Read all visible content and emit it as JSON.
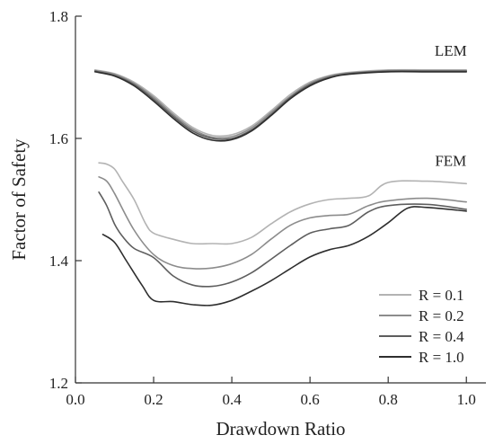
{
  "chart_data": {
    "type": "line",
    "title": "",
    "xlabel": "Drawdown Ratio",
    "ylabel": "Factor of Safety",
    "xlim": [
      0.0,
      1.05
    ],
    "ylim": [
      1.2,
      1.8
    ],
    "xticks": [
      0.0,
      0.2,
      0.4,
      0.6,
      0.8,
      1.0
    ],
    "xtick_labels": [
      "0.0",
      "0.2",
      "0.4",
      "0.6",
      "0.8",
      "1.0"
    ],
    "yticks": [
      1.2,
      1.4,
      1.6,
      1.8
    ],
    "ytick_labels": [
      "1.2",
      "1.4",
      "1.6",
      "1.8"
    ],
    "grid": false,
    "legend_position": "bottom-right",
    "annotations": [
      {
        "text": "LEM",
        "x": 0.96,
        "y": 1.735
      },
      {
        "text": "FEM",
        "x": 0.96,
        "y": 1.555
      }
    ],
    "series": [
      {
        "name": "R = 0.1",
        "group": "LEM",
        "color": "#b3b3b3",
        "x": [
          0.05,
          0.1,
          0.15,
          0.2,
          0.25,
          0.3,
          0.35,
          0.4,
          0.45,
          0.5,
          0.55,
          0.6,
          0.65,
          0.7,
          0.8,
          0.9,
          1.0
        ],
        "y": [
          1.712,
          1.706,
          1.692,
          1.67,
          1.642,
          1.618,
          1.605,
          1.606,
          1.62,
          1.645,
          1.672,
          1.692,
          1.703,
          1.708,
          1.712,
          1.712,
          1.712
        ]
      },
      {
        "name": "R = 0.2",
        "group": "LEM",
        "color": "#8c8c8c",
        "x": [
          0.05,
          0.1,
          0.15,
          0.2,
          0.25,
          0.3,
          0.35,
          0.4,
          0.45,
          0.5,
          0.55,
          0.6,
          0.65,
          0.7,
          0.8,
          0.9,
          1.0
        ],
        "y": [
          1.711,
          1.705,
          1.69,
          1.667,
          1.639,
          1.615,
          1.602,
          1.603,
          1.617,
          1.642,
          1.669,
          1.69,
          1.702,
          1.707,
          1.711,
          1.711,
          1.711
        ]
      },
      {
        "name": "R = 0.4",
        "group": "LEM",
        "color": "#5e5e5e",
        "x": [
          0.05,
          0.1,
          0.15,
          0.2,
          0.25,
          0.3,
          0.35,
          0.4,
          0.45,
          0.5,
          0.55,
          0.6,
          0.65,
          0.7,
          0.8,
          0.9,
          1.0
        ],
        "y": [
          1.71,
          1.703,
          1.688,
          1.664,
          1.636,
          1.612,
          1.6,
          1.6,
          1.614,
          1.639,
          1.667,
          1.688,
          1.7,
          1.706,
          1.71,
          1.71,
          1.71
        ]
      },
      {
        "name": "R = 1.0",
        "group": "LEM",
        "color": "#2e2e2e",
        "x": [
          0.05,
          0.1,
          0.15,
          0.2,
          0.25,
          0.3,
          0.35,
          0.4,
          0.45,
          0.5,
          0.55,
          0.6,
          0.65,
          0.7,
          0.8,
          0.9,
          1.0
        ],
        "y": [
          1.709,
          1.702,
          1.686,
          1.661,
          1.633,
          1.609,
          1.597,
          1.598,
          1.612,
          1.637,
          1.665,
          1.686,
          1.699,
          1.705,
          1.709,
          1.709,
          1.709
        ]
      },
      {
        "name": "R = 0.1",
        "group": "FEM",
        "color": "#b3b3b3",
        "x": [
          0.06,
          0.08,
          0.1,
          0.12,
          0.15,
          0.18,
          0.2,
          0.25,
          0.3,
          0.35,
          0.4,
          0.45,
          0.5,
          0.55,
          0.6,
          0.65,
          0.7,
          0.75,
          0.8,
          0.9,
          1.0
        ],
        "y": [
          1.56,
          1.558,
          1.55,
          1.53,
          1.5,
          1.46,
          1.445,
          1.435,
          1.428,
          1.428,
          1.428,
          1.438,
          1.46,
          1.48,
          1.493,
          1.5,
          1.502,
          1.506,
          1.528,
          1.53,
          1.526
        ]
      },
      {
        "name": "R = 0.2",
        "group": "FEM",
        "color": "#8c8c8c",
        "x": [
          0.06,
          0.08,
          0.1,
          0.15,
          0.2,
          0.25,
          0.3,
          0.35,
          0.4,
          0.45,
          0.5,
          0.55,
          0.6,
          0.65,
          0.7,
          0.75,
          0.8,
          0.9,
          1.0
        ],
        "y": [
          1.537,
          1.53,
          1.51,
          1.45,
          1.41,
          1.392,
          1.387,
          1.388,
          1.395,
          1.41,
          1.435,
          1.458,
          1.47,
          1.474,
          1.476,
          1.49,
          1.498,
          1.502,
          1.496
        ]
      },
      {
        "name": "R = 0.4",
        "group": "FEM",
        "color": "#5e5e5e",
        "x": [
          0.06,
          0.08,
          0.1,
          0.12,
          0.15,
          0.2,
          0.25,
          0.3,
          0.35,
          0.4,
          0.45,
          0.5,
          0.55,
          0.6,
          0.65,
          0.7,
          0.75,
          0.8,
          0.9,
          1.0
        ],
        "y": [
          1.512,
          1.49,
          1.46,
          1.44,
          1.42,
          1.405,
          1.375,
          1.36,
          1.358,
          1.365,
          1.38,
          1.402,
          1.425,
          1.445,
          1.452,
          1.458,
          1.48,
          1.49,
          1.492,
          1.484
        ]
      },
      {
        "name": "R = 1.0",
        "group": "FEM",
        "color": "#2e2e2e",
        "x": [
          0.07,
          0.1,
          0.13,
          0.17,
          0.2,
          0.25,
          0.3,
          0.35,
          0.4,
          0.45,
          0.5,
          0.55,
          0.6,
          0.65,
          0.7,
          0.75,
          0.8,
          0.85,
          0.9,
          1.0
        ],
        "y": [
          1.443,
          1.43,
          1.4,
          1.36,
          1.335,
          1.333,
          1.328,
          1.327,
          1.335,
          1.35,
          1.367,
          1.387,
          1.406,
          1.418,
          1.425,
          1.44,
          1.462,
          1.486,
          1.487,
          1.481
        ]
      }
    ],
    "legend": [
      {
        "label": "R = 0.1",
        "color": "#b3b3b3"
      },
      {
        "label": "R = 0.2",
        "color": "#8c8c8c"
      },
      {
        "label": "R = 0.4",
        "color": "#5e5e5e"
      },
      {
        "label": "R = 1.0",
        "color": "#2e2e2e"
      }
    ]
  }
}
